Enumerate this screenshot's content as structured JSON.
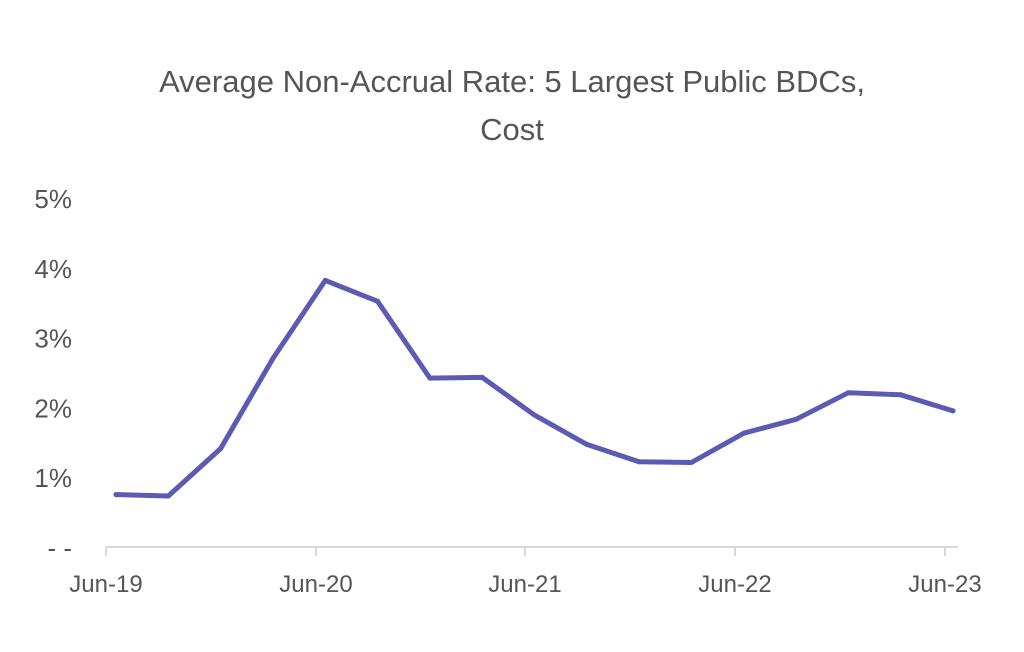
{
  "chart_data": {
    "type": "line",
    "title_line1": "Average Non-Accrual Rate: 5 Largest Public BDCs,",
    "title_line2": "Cost",
    "xlabel": "",
    "ylabel": "",
    "x_tick_labels": [
      "Jun-19",
      "Jun-20",
      "Jun-21",
      "Jun-22",
      "Jun-23"
    ],
    "y_tick_labels": [
      "- -",
      "1%",
      "2%",
      "3%",
      "4%",
      "5%"
    ],
    "ylim": [
      0,
      5
    ],
    "grid": false,
    "legend": "none",
    "series": [
      {
        "color": "#5b5bb3",
        "x": [
          "Jun-19",
          "Sep-19",
          "Dec-19",
          "Mar-20",
          "Jun-20",
          "Sep-20",
          "Dec-20",
          "Mar-21",
          "Jun-21",
          "Sep-21",
          "Dec-21",
          "Mar-22",
          "Jun-22",
          "Sep-22",
          "Dec-22",
          "Mar-23",
          "Jun-23"
        ],
        "values": [
          0.75,
          0.73,
          1.41,
          2.7,
          3.82,
          3.52,
          2.42,
          2.43,
          1.89,
          1.47,
          1.22,
          1.21,
          1.63,
          1.83,
          2.21,
          2.18,
          1.95
        ]
      }
    ]
  }
}
